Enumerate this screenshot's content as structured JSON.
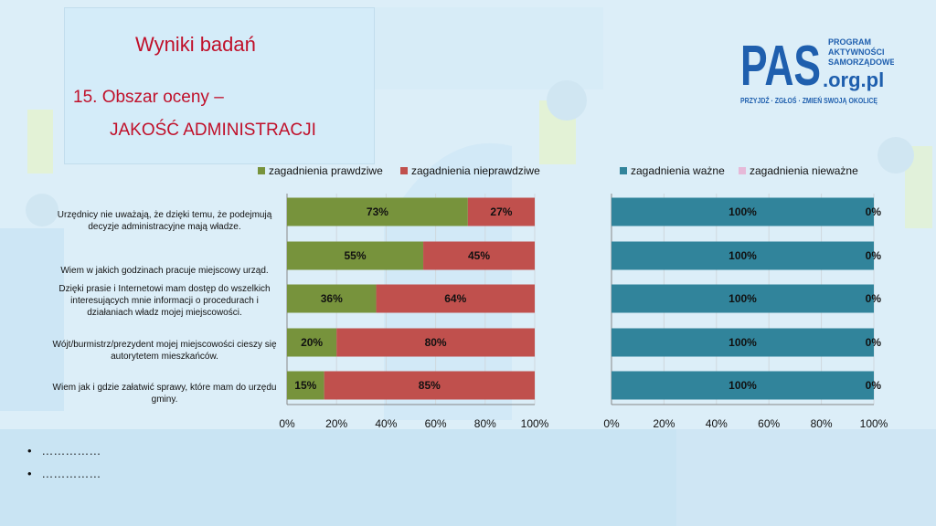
{
  "header": {
    "page_title": "Wyniki badań",
    "section_title": "15. Obszar oceny –",
    "section_subtitle": "JAKOŚĆ ADMINISTRACJI"
  },
  "logo": {
    "main": "PAS",
    "domain": ".org.pl",
    "tag1": "PROGRAM",
    "tag2": "AKTYWNOŚCI",
    "tag3": "SAMORZĄDOWEJ",
    "slogan": "PRZYJDŹ · ZGŁOŚ · ZMIEŃ SWOJĄ OKOLICĘ"
  },
  "bullets": [
    "……………",
    "……………"
  ],
  "chart_data": [
    {
      "type": "bar",
      "orientation": "horizontal",
      "stacked": true,
      "categories": [
        "Urzędnicy nie uważają, że dzięki temu, że podejmują decyzje administracyjne mają władze.",
        "Wiem w jakich godzinach pracuje miejscowy urząd.",
        "Dzięki prasie i Internetowi mam dostęp do wszelkich interesujących mnie informacji o procedurach i działaniach władz mojej miejscowości.",
        "Wójt/burmistrz/prezydent mojej miejscowości cieszy się autorytetem mieszkańców.",
        "Wiem jak i gdzie załatwić sprawy, które mam do urzędu gminy."
      ],
      "series": [
        {
          "name": "zagadnienia prawdziwe",
          "color": "#77933c",
          "values": [
            73,
            55,
            36,
            20,
            15
          ],
          "labels": [
            "73%",
            "55%",
            "36%",
            "20%",
            "15%"
          ]
        },
        {
          "name": "zagadnienia nieprawdziwe",
          "color": "#c0504d",
          "values": [
            27,
            45,
            64,
            80,
            85
          ],
          "labels": [
            "27%",
            "45%",
            "64%",
            "80%",
            "85%"
          ]
        }
      ],
      "xlim": [
        0,
        100
      ],
      "ticks": [
        "0%",
        "20%",
        "40%",
        "60%",
        "80%",
        "100%"
      ],
      "legend_position": "top"
    },
    {
      "type": "bar",
      "orientation": "horizontal",
      "stacked": true,
      "series": [
        {
          "name": "zagadnienia ważne",
          "color": "#31849b",
          "values": [
            100,
            100,
            100,
            100,
            100
          ],
          "labels": [
            "100%",
            "100%",
            "100%",
            "100%",
            "100%"
          ]
        },
        {
          "name": "zagadnienia nieważne",
          "color": "#e6b9d8",
          "values": [
            0,
            0,
            0,
            0,
            0
          ],
          "labels": [
            "0%",
            "0%",
            "0%",
            "0%",
            "0%"
          ]
        }
      ],
      "xlim": [
        0,
        100
      ],
      "ticks": [
        "0%",
        "20%",
        "40%",
        "60%",
        "80%",
        "100%"
      ],
      "legend_position": "top"
    }
  ]
}
